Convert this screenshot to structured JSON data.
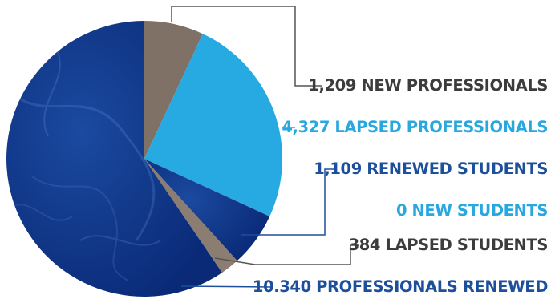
{
  "chart_data": {
    "type": "pie",
    "title": "",
    "slices": [
      {
        "name": "NEW PROFESSIONALS",
        "value": 1209,
        "value_text": "1,209",
        "color": "#7f7166",
        "label_color": "#3c3c3c"
      },
      {
        "name": "LAPSED PROFESSIONALS",
        "value": 4327,
        "value_text": "4,327",
        "color": "#27a9e1",
        "label_color": "#29a8e0"
      },
      {
        "name": "RENEWED STUDENTS",
        "value": 1109,
        "value_text": "1,109",
        "color": "#0c2f7e",
        "label_color": "#1d4f9b"
      },
      {
        "name": "NEW STUDENTS",
        "value": 0,
        "value_text": "0",
        "color": "#1a3f92",
        "label_color": "#1d4f9b"
      },
      {
        "name": "LAPSED STUDENTS",
        "value": 384,
        "value_text": "384",
        "color": "#8b7d72",
        "label_color": "#3c3c3c"
      },
      {
        "name": "PROFESSIONALS RENEWED",
        "value": 10340,
        "value_text": "10.340",
        "color": "#082a78",
        "label_color": "#1d4f9b"
      }
    ]
  }
}
